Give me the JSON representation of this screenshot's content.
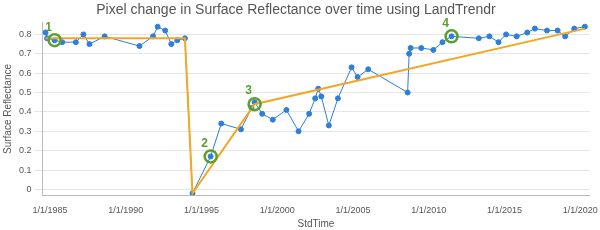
{
  "chart_data": {
    "type": "line",
    "title": "Pixel change in Surface Reflectance over time using LandTrendr",
    "x_label": "StdTime",
    "y_label": "Surface Reflectance",
    "xlim": [
      1984.5,
      2020.6
    ],
    "xticks": [
      {
        "value": 1985,
        "label": "1/1/1985"
      },
      {
        "value": 1990,
        "label": "1/1/1990"
      },
      {
        "value": 1995,
        "label": "1/1/1995"
      },
      {
        "value": 2000,
        "label": "1/1/2000"
      },
      {
        "value": 2005,
        "label": "1/1/2005"
      },
      {
        "value": 2010,
        "label": "1/1/2010"
      },
      {
        "value": 2015,
        "label": "1/1/2015"
      },
      {
        "value": 2020,
        "label": "1/1/2020"
      }
    ],
    "ylim": [
      -0.03,
      0.86
    ],
    "yticks": [
      0,
      0.1,
      0.2,
      0.3,
      0.4,
      0.5,
      0.6,
      0.7,
      0.8
    ],
    "grid": "y",
    "series": [
      {
        "color": "#2e7fd9",
        "marker": "circle",
        "line_style": "solid",
        "x": [
          1984.7,
          1984.8,
          1985.3,
          1985.8,
          1986.7,
          1987.2,
          1987.6,
          1988.6,
          1990.9,
          1991.8,
          1992.1,
          1992.6,
          1993.0,
          1993.4,
          1993.9,
          1994.4,
          1995.6,
          1996.3,
          1997.6,
          1998.3,
          1998.5,
          1999.0,
          1999.7,
          2000.6,
          2001.4,
          2002.1,
          2002.5,
          2002.7,
          2002.9,
          2003.4,
          2004.0,
          2004.9,
          2005.3,
          2006.0,
          2008.6,
          2008.7,
          2008.8,
          2009.5,
          2010.3,
          2010.9,
          2011.5,
          2013.3,
          2014.0,
          2014.6,
          2015.1,
          2015.8,
          2016.5,
          2017.0,
          2017.8,
          2018.5,
          2019.0,
          2019.6,
          2020.3
        ],
        "values": [
          0.81,
          0.78,
          0.77,
          0.76,
          0.76,
          0.8,
          0.75,
          0.79,
          0.74,
          0.79,
          0.84,
          0.82,
          0.75,
          0.77,
          0.78,
          -0.02,
          0.17,
          0.34,
          0.31,
          0.42,
          0.45,
          0.39,
          0.36,
          0.41,
          0.3,
          0.39,
          0.47,
          0.52,
          0.48,
          0.33,
          0.47,
          0.63,
          0.58,
          0.62,
          0.5,
          0.7,
          0.73,
          0.73,
          0.72,
          0.76,
          0.79,
          0.78,
          0.79,
          0.76,
          0.8,
          0.79,
          0.81,
          0.83,
          0.82,
          0.82,
          0.79,
          0.83,
          0.84
        ]
      },
      {
        "color": "#f5a623",
        "marker": "none",
        "line_style": "solid",
        "x": [
          1984.7,
          1993.9,
          1994.4,
          1998.5,
          2020.3
        ],
        "values": [
          0.78,
          0.78,
          -0.02,
          0.44,
          0.83
        ]
      }
    ],
    "annotations": [
      {
        "text": "1",
        "x": 1985.3,
        "y": 0.77
      },
      {
        "text": "2",
        "x": 1995.6,
        "y": 0.17
      },
      {
        "text": "3",
        "x": 1998.5,
        "y": 0.44
      },
      {
        "text": "4",
        "x": 2011.5,
        "y": 0.79
      }
    ]
  }
}
